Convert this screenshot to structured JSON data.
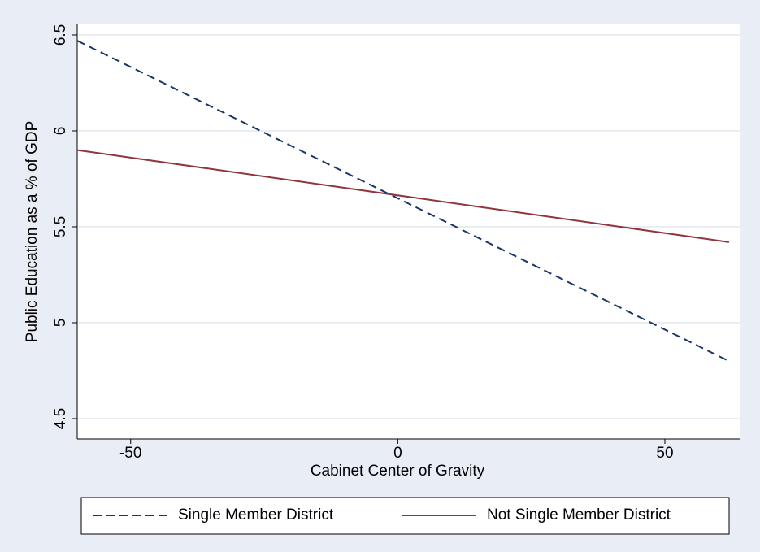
{
  "chart_data": {
    "type": "line",
    "x_label": "Cabinet Center of Gravity",
    "y_label": "Public Education as a % of GDP",
    "x": [
      -60,
      62
    ],
    "series": [
      {
        "name": "Single Member District",
        "color": "#1a3668",
        "dash": true,
        "values": [
          6.47,
          4.8
        ]
      },
      {
        "name": "Not Single Member District",
        "color": "#90353b",
        "dash": false,
        "values": [
          5.9,
          5.42
        ]
      }
    ],
    "xlim": [
      -60,
      64
    ],
    "ylim": [
      4.394,
      6.555
    ],
    "xticks": [
      -50,
      0,
      50
    ],
    "yticks": [
      4.5,
      5,
      5.5,
      6,
      6.5
    ],
    "grid": true,
    "legend": "bottom"
  }
}
